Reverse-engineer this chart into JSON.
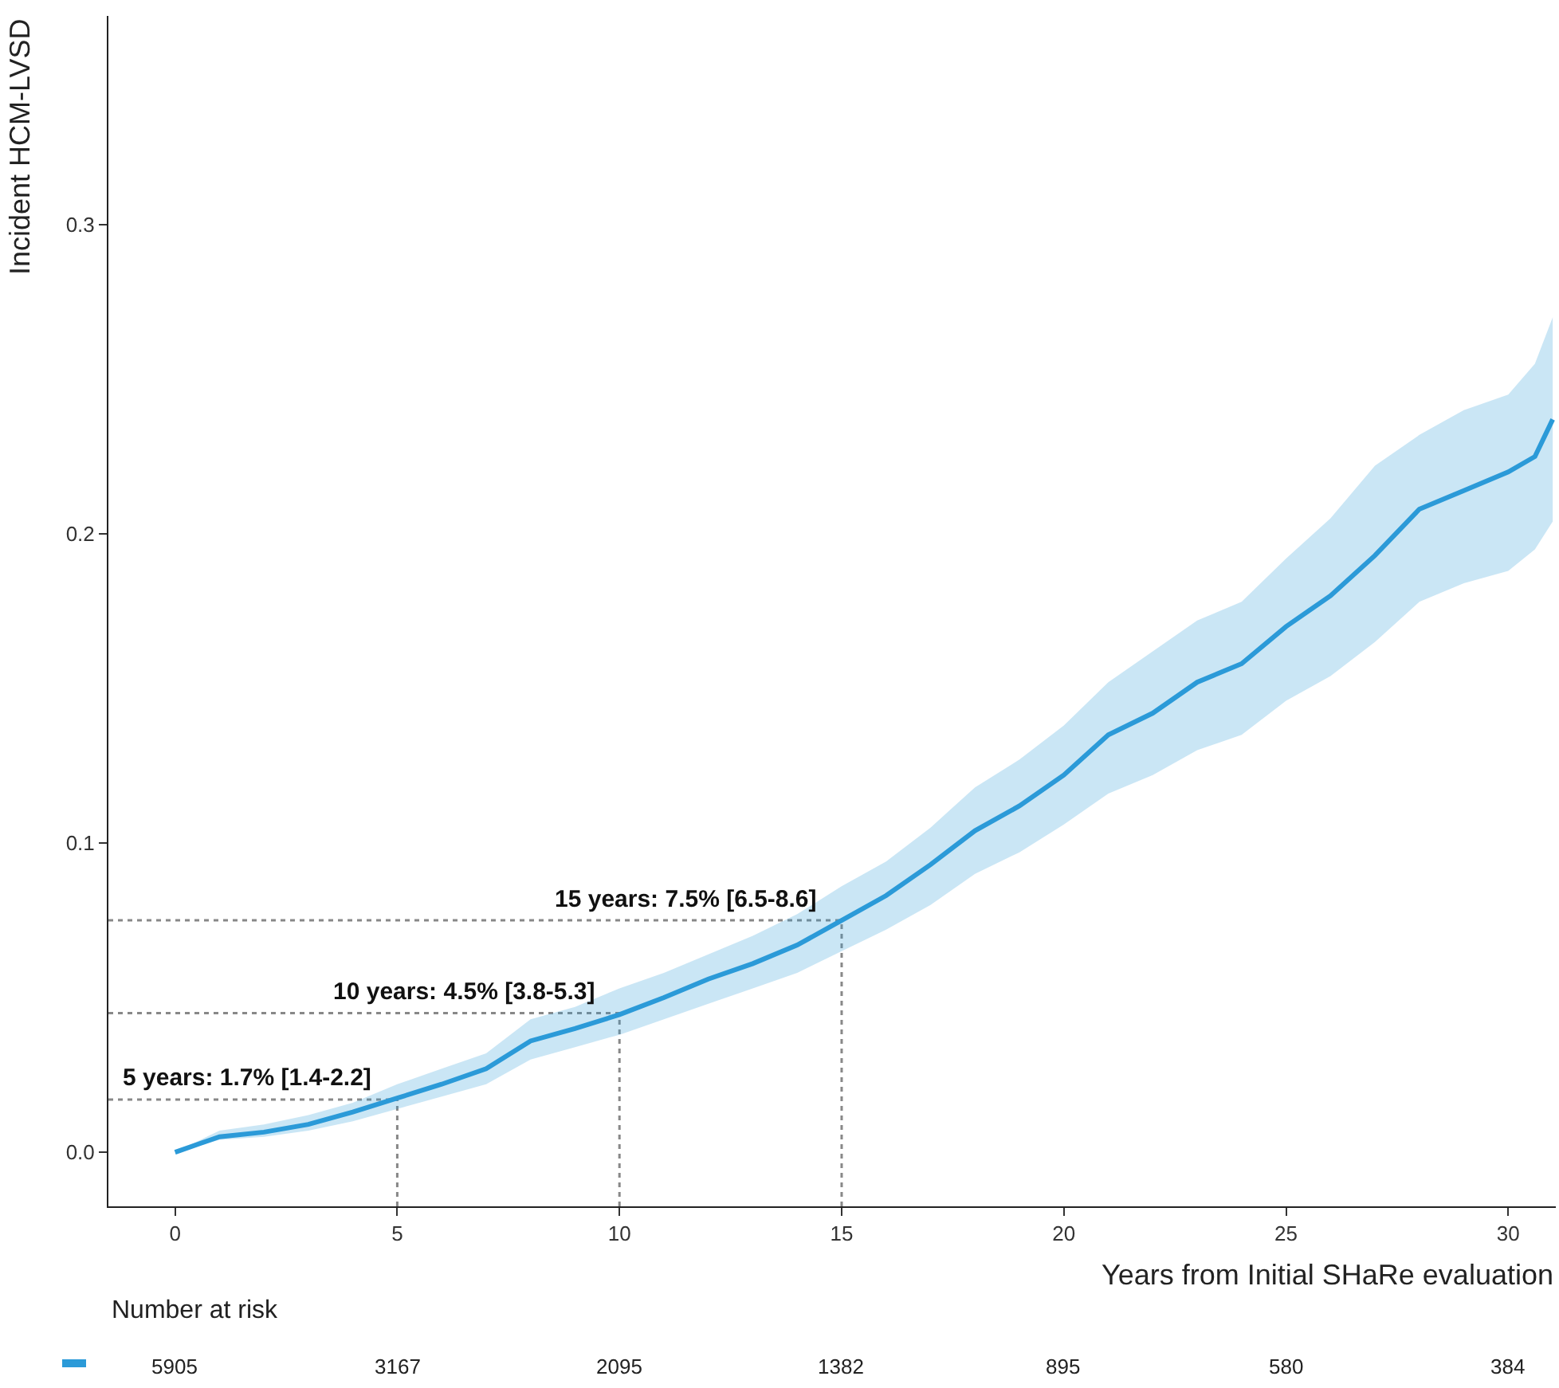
{
  "chart_data": {
    "type": "line",
    "xlabel": "Years from Initial SHaRe evaluation",
    "ylabel": "Incident HCM-LVSD",
    "xlim": [
      -1.5,
      31.07
    ],
    "ylim": [
      -0.0175,
      0.3675
    ],
    "xticks": [
      0,
      5,
      10,
      15,
      20,
      25,
      30
    ],
    "yticks": [
      {
        "value": 0,
        "label": "0.0"
      },
      {
        "value": 0.1,
        "label": "0.1"
      },
      {
        "value": 0.2,
        "label": "0.2"
      },
      {
        "value": 0.3,
        "label": "0.3"
      }
    ],
    "grid": false,
    "marker": "none",
    "line_style": "solid",
    "series": [
      {
        "color": "#2b9ad8",
        "x": [
          0,
          1,
          2,
          3,
          4,
          5,
          6,
          7,
          8,
          9,
          10,
          11,
          12,
          13,
          14,
          15,
          16,
          17,
          18,
          19,
          20,
          21,
          22,
          23,
          24,
          25,
          26,
          27,
          28,
          29,
          30,
          30.6,
          31
        ],
        "values": [
          0,
          0.005,
          0.0065,
          0.009,
          0.013,
          0.0175,
          0.022,
          0.027,
          0.036,
          0.04,
          0.0445,
          0.05,
          0.056,
          0.061,
          0.067,
          0.075,
          0.083,
          0.093,
          0.104,
          0.112,
          0.122,
          0.135,
          0.142,
          0.152,
          0.158,
          0.17,
          0.18,
          0.193,
          0.208,
          0.214,
          0.22,
          0.225,
          0.237
        ],
        "lower": [
          0,
          0.004,
          0.005,
          0.007,
          0.01,
          0.014,
          0.018,
          0.022,
          0.03,
          0.034,
          0.038,
          0.043,
          0.048,
          0.053,
          0.058,
          0.065,
          0.072,
          0.08,
          0.09,
          0.097,
          0.106,
          0.116,
          0.122,
          0.13,
          0.135,
          0.146,
          0.154,
          0.165,
          0.178,
          0.184,
          0.188,
          0.195,
          0.204
        ],
        "upper": [
          0,
          0.007,
          0.009,
          0.012,
          0.016,
          0.022,
          0.027,
          0.032,
          0.043,
          0.047,
          0.053,
          0.058,
          0.064,
          0.07,
          0.077,
          0.086,
          0.094,
          0.105,
          0.118,
          0.127,
          0.138,
          0.152,
          0.162,
          0.172,
          0.178,
          0.192,
          0.205,
          0.222,
          0.232,
          0.24,
          0.245,
          0.255,
          0.27
        ]
      }
    ],
    "annotations": [
      {
        "text": "5 years: 1.7% [1.4-2.2]",
        "x": 5,
        "y": 0.017
      },
      {
        "text": "10 years: 4.5% [3.8-5.3]",
        "x": 10,
        "y": 0.045
      },
      {
        "text": "15 years: 7.5% [6.5-8.6]",
        "x": 15,
        "y": 0.075
      },
      "Number at risk",
      "5905",
      "3167",
      "2095",
      "1382",
      "895",
      "580",
      "384"
    ]
  }
}
